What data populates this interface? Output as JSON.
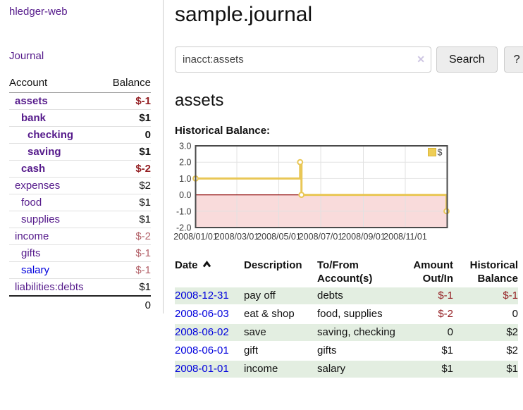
{
  "brand": "hledger-web",
  "nav": {
    "journal": "Journal"
  },
  "header": {
    "title": "sample.journal"
  },
  "search": {
    "value": "inacct:assets",
    "button": "Search",
    "help": "?"
  },
  "icons": {
    "clear_search": "✕",
    "date_sort": "chevron-up"
  },
  "account_page": {
    "title": "assets",
    "chart_title": "Historical Balance:"
  },
  "sidebar": {
    "account_header": "Account",
    "balance_header": "Balance",
    "accounts": [
      {
        "name": "assets",
        "indent": 1,
        "balance": "$-1",
        "bold": true,
        "neg": "strong"
      },
      {
        "name": "bank",
        "indent": 2,
        "balance": "$1",
        "bold": true,
        "neg": null
      },
      {
        "name": "checking",
        "indent": 3,
        "balance": "0",
        "bold": true,
        "neg": null
      },
      {
        "name": "saving",
        "indent": 3,
        "balance": "$1",
        "bold": true,
        "neg": null
      },
      {
        "name": "cash",
        "indent": 2,
        "balance": "$-2",
        "bold": true,
        "neg": "strong"
      },
      {
        "name": "expenses",
        "indent": 1,
        "balance": "$2",
        "bold": false,
        "neg": null
      },
      {
        "name": "food",
        "indent": 2,
        "balance": "$1",
        "bold": false,
        "neg": null
      },
      {
        "name": "supplies",
        "indent": 2,
        "balance": "$1",
        "bold": false,
        "neg": null
      },
      {
        "name": "income",
        "indent": 1,
        "balance": "$-2",
        "bold": false,
        "neg": "soft"
      },
      {
        "name": "gifts",
        "indent": 2,
        "balance": "$-1",
        "bold": false,
        "neg": "soft"
      },
      {
        "name": "salary",
        "indent": 2,
        "balance": "$-1",
        "bold": false,
        "neg": "soft",
        "unvisited": true
      },
      {
        "name": "liabilities:debts",
        "indent": 1,
        "balance": "$1",
        "bold": false,
        "neg": null
      }
    ],
    "total": "0"
  },
  "chart_data": {
    "type": "line",
    "step": true,
    "title": "Historical Balance:",
    "xlabel": "",
    "ylabel": "",
    "legend": "$",
    "legend_position": "top-right",
    "grid": true,
    "x_range": [
      "2008-01-01",
      "2009-01-01"
    ],
    "y_range": [
      -2,
      3
    ],
    "y_ticks": [
      3.0,
      2.0,
      1.0,
      0.0,
      -1.0,
      -2.0
    ],
    "x_ticks": [
      "2008/01/01",
      "2008/03/01",
      "2008/05/01",
      "2008/07/01",
      "2008/09/01",
      "2008/11/01"
    ],
    "series": [
      {
        "name": "$",
        "color": "#e9c756",
        "points": [
          [
            "2008-01-01",
            1.0
          ],
          [
            "2008-06-01",
            2.0
          ],
          [
            "2008-06-03",
            0.0
          ],
          [
            "2008-12-31",
            -1.0
          ]
        ]
      }
    ],
    "negative_region_color": "#f9dbdb",
    "zero_line_color": "#8b0000"
  },
  "register": {
    "columns": [
      "Date",
      "Description",
      "To/From Account(s)",
      "Amount Out/In",
      "Historical Balance"
    ],
    "rows": [
      {
        "date": "2008-12-31",
        "description": "pay off",
        "accounts": "debts",
        "amount": "$-1",
        "balance": "$-1",
        "amount_neg": true,
        "balance_neg": true
      },
      {
        "date": "2008-06-03",
        "description": "eat & shop",
        "accounts": "food, supplies",
        "amount": "$-2",
        "balance": "0",
        "amount_neg": true,
        "balance_neg": false
      },
      {
        "date": "2008-06-02",
        "description": "save",
        "accounts": "saving, checking",
        "amount": "0",
        "balance": "$2",
        "amount_neg": false,
        "balance_neg": false
      },
      {
        "date": "2008-06-01",
        "description": "gift",
        "accounts": "gifts",
        "amount": "$1",
        "balance": "$2",
        "amount_neg": false,
        "balance_neg": false
      },
      {
        "date": "2008-01-01",
        "description": "income",
        "accounts": "salary",
        "amount": "$1",
        "balance": "$1",
        "amount_neg": false,
        "balance_neg": false
      }
    ]
  },
  "colors": {
    "visited_link": "#551a8b",
    "link": "#0000dd",
    "negative": "#941f23",
    "negative_muted": "#b4646b",
    "row_stripe": "#e3eee1",
    "chart_line": "#e9c756",
    "chart_negative_bg": "#f9dbdb",
    "chart_zero_line": "#8b0000",
    "button_bg": "#ededed"
  }
}
